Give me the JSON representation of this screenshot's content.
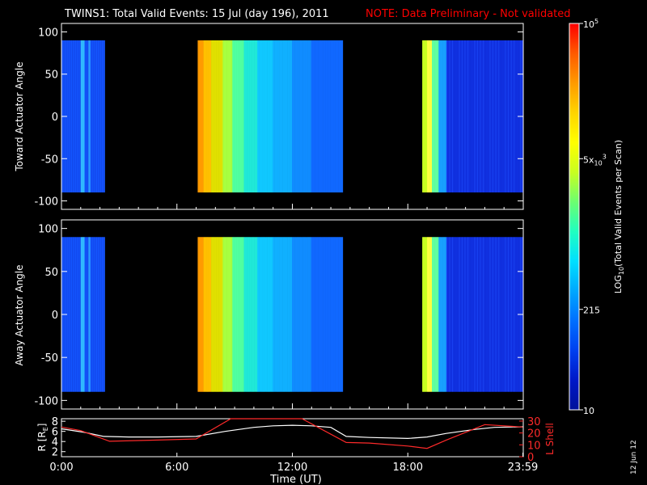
{
  "header": {
    "title": "TWINS1: Total Valid Events: 15 Jul (day 196), 2011",
    "note": "NOTE: Data Preliminary - Not validated"
  },
  "footer": {
    "date_stamp": "12 Jun 12"
  },
  "colors": {
    "background": "#000000",
    "text": "#ffffff",
    "note": "#ff0000",
    "r_line": "#ffffff",
    "l_shell_line": "#ff2a2a"
  },
  "chart_data": [
    {
      "type": "heatmap",
      "ylabel": "Toward Actuator Angle",
      "y_ticks": [
        100,
        50,
        0,
        -50,
        -100
      ],
      "ylim": [
        -110,
        110
      ],
      "xlim": [
        0,
        24
      ],
      "value_range_y": [
        -90,
        90
      ],
      "blocks": [
        {
          "x_start": 0.0,
          "x_end": 2.25
        },
        {
          "x_start": 7.08,
          "x_end": 14.62
        },
        {
          "x_start": 18.75,
          "x_end": 24.0
        }
      ]
    },
    {
      "type": "heatmap",
      "ylabel": "Away Actuator Angle",
      "y_ticks": [
        100,
        50,
        0,
        -50,
        -100
      ],
      "ylim": [
        -110,
        110
      ],
      "xlim": [
        0,
        24
      ],
      "value_range_y": [
        -90,
        90
      ],
      "blocks": [
        {
          "x_start": 0.0,
          "x_end": 2.25
        },
        {
          "x_start": 7.08,
          "x_end": 14.62
        },
        {
          "x_start": 18.75,
          "x_end": 24.0
        }
      ]
    },
    {
      "type": "line",
      "xlabel": "Time (UT)",
      "x_tick_labels": [
        "0:00",
        "6:00",
        "12:00",
        "18:00",
        "23:59"
      ],
      "x_ticks": [
        0,
        6,
        12,
        18,
        23.98
      ],
      "xlim": [
        0,
        24
      ],
      "left_axis": {
        "label": "R [R",
        "label_sub": "E",
        "label_end": "]",
        "ticks": [
          2,
          4,
          6,
          8
        ],
        "ylim": [
          1,
          8.5
        ]
      },
      "right_axis": {
        "label": "L Shell",
        "ticks": [
          0,
          10,
          20,
          30
        ],
        "ylim": [
          0,
          32
        ]
      },
      "series": [
        {
          "axis": "left",
          "x": [
            0,
            1.2,
            2.2,
            3.5,
            5.0,
            7.0,
            8.5,
            10.0,
            11.0,
            12.0,
            13.0,
            14.0,
            14.8,
            16.0,
            18.0,
            19.0,
            20.0,
            21.5,
            22.5,
            23.98
          ],
          "y": [
            6.5,
            5.8,
            5.0,
            4.9,
            4.9,
            5.0,
            6.0,
            6.8,
            7.1,
            7.2,
            7.1,
            6.8,
            5.0,
            4.8,
            4.6,
            4.9,
            5.6,
            6.4,
            6.8,
            6.9
          ]
        },
        {
          "axis": "right",
          "x": [
            0,
            1.0,
            2.5,
            5.0,
            7.0,
            8.8,
            12.5,
            14.8,
            16.0,
            18.0,
            19.0,
            20.0,
            22.0,
            23.98
          ],
          "y": [
            25,
            22,
            13,
            14,
            15,
            33,
            33,
            12,
            11.5,
            9,
            7,
            14,
            27,
            25
          ]
        }
      ]
    }
  ],
  "colorbar": {
    "label_main": "LOG",
    "label_sub": "10",
    "label_rest": "(Total Valid Events per Scan)",
    "ticks": [
      {
        "base": "10",
        "sup": "5",
        "sub": "",
        "pos": 0.0
      },
      {
        "base": "5x",
        "sup": "3",
        "sub": "10",
        "pos": 0.35
      },
      {
        "base": "215",
        "sup": "",
        "sub": "",
        "pos": 0.74
      },
      {
        "base": "10",
        "sup": "",
        "sub": "",
        "pos": 1.0
      }
    ],
    "stops": [
      "#ff0000",
      "#ff5a00",
      "#ff9a00",
      "#ffd400",
      "#ffff00",
      "#c8ff20",
      "#6cff70",
      "#20ffc0",
      "#00e0ff",
      "#00a8ff",
      "#0070ff",
      "#0040f0",
      "#0018c8",
      "#00109a"
    ]
  }
}
